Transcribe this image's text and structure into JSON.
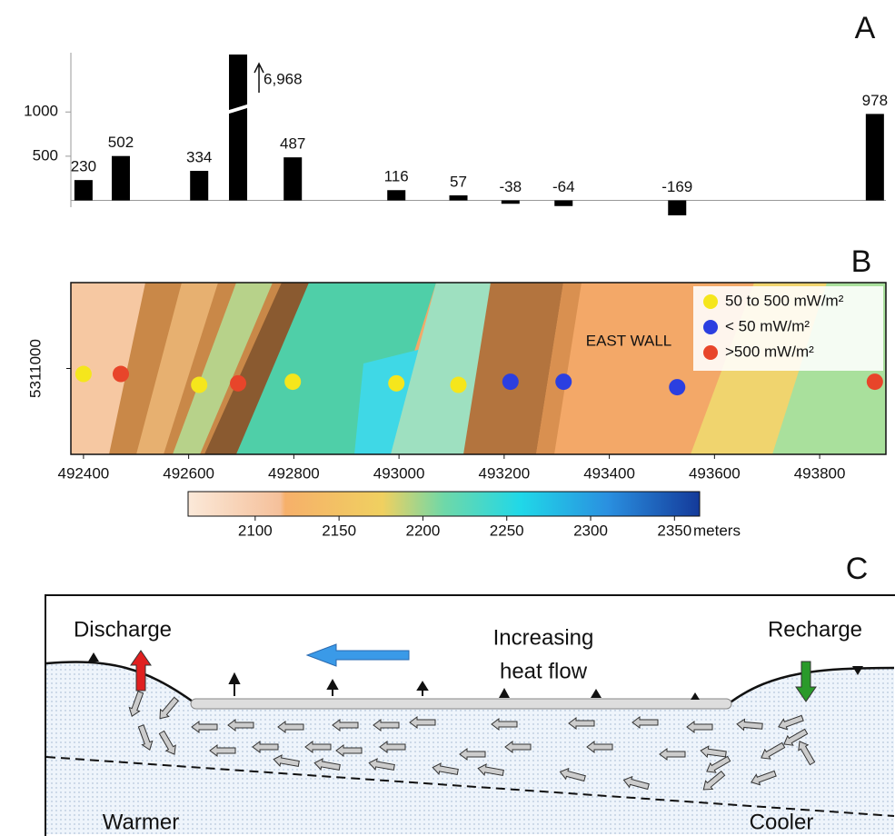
{
  "chart_data": [
    {
      "type": "bar",
      "title": "A",
      "x": [
        492400,
        492471,
        492620,
        492694,
        492798,
        492995,
        493113,
        493212,
        493313,
        493529,
        493905
      ],
      "values": [
        230,
        502,
        334,
        6968,
        487,
        116,
        57,
        -38,
        -64,
        -169,
        978
      ],
      "value_labels": [
        "230",
        "502",
        "334",
        "6,968",
        "487",
        "116",
        "57",
        "-38",
        "-64",
        "-169",
        "978"
      ],
      "color": "#000000",
      "xlim": [
        492376,
        493926
      ],
      "ylim": [
        -200,
        1650
      ],
      "yticks": [
        500,
        1000
      ],
      "grid": false
    },
    {
      "type": "scatter",
      "title": "B",
      "annotation": "EAST WALL",
      "xlim": [
        492376,
        493926
      ],
      "xticks": [
        492400,
        492600,
        492800,
        493000,
        493200,
        493400,
        493600,
        493800
      ],
      "ylim": [
        5310890,
        5311110
      ],
      "yticks": [
        5311000
      ],
      "legend": "upper right",
      "series": [
        {
          "name": "50 to 500 mW/m²",
          "color": "#f5e61c",
          "x": [
            492400,
            492620,
            492798,
            492995,
            493113
          ],
          "values": [
            5310993,
            5310979,
            5310983,
            5310981,
            5310979
          ]
        },
        {
          "name": "< 50 mW/m²",
          "color": "#2b3fe0",
          "x": [
            493212,
            493313,
            493529
          ],
          "values": [
            5310983,
            5310983,
            5310976
          ]
        },
        {
          "name": ">500 mW/m²",
          "color": "#e8452a",
          "x": [
            492471,
            492694,
            493905
          ],
          "values": [
            5310993,
            5310981,
            5310983
          ]
        }
      ],
      "colorbar": {
        "lim": [
          2060,
          2365
        ],
        "ticks": [
          2100,
          2150,
          2200,
          2250,
          2300,
          2350
        ],
        "label": "meters"
      }
    }
  ],
  "diagram": {
    "title": "C",
    "discharge": "Discharge",
    "recharge": "Recharge",
    "heat_flow": [
      "Increasing",
      "heat flow"
    ],
    "warmer": "Warmer",
    "cooler": "Cooler"
  }
}
